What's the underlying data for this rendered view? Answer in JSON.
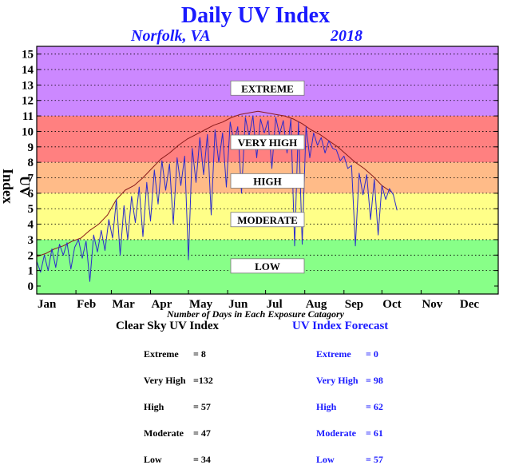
{
  "title": "Daily UV Index",
  "location": "Norfolk, VA",
  "year": "2018",
  "ylabel": "UV Index",
  "subtitle": "Number of Days in Each Exposure Catagory",
  "clear_sky": {
    "heading": "Clear Sky UV Index",
    "rows": [
      {
        "label": "Extreme",
        "value": "= 8"
      },
      {
        "label": "Very High",
        "value": "=132"
      },
      {
        "label": "High",
        "value": "= 57"
      },
      {
        "label": "Moderate",
        "value": "= 47"
      },
      {
        "label": "Low",
        "value": "= 34"
      }
    ]
  },
  "forecast": {
    "heading": "UV Index Forecast",
    "rows": [
      {
        "label": "Extreme",
        "value": "= 0"
      },
      {
        "label": "Very High",
        "value": "= 98"
      },
      {
        "label": "High",
        "value": "= 62"
      },
      {
        "label": "Moderate",
        "value": "= 61"
      },
      {
        "label": "Low",
        "value": "= 57"
      }
    ]
  },
  "chart_data": {
    "type": "line",
    "ylim": [
      0,
      15
    ],
    "yticks": [
      0,
      1,
      2,
      3,
      4,
      5,
      6,
      7,
      8,
      9,
      10,
      11,
      12,
      13,
      14,
      15
    ],
    "xlim": [
      1,
      366
    ],
    "months": [
      {
        "label": "Jan",
        "day": 1
      },
      {
        "label": "Feb",
        "day": 32
      },
      {
        "label": "Mar",
        "day": 60
      },
      {
        "label": "Apr",
        "day": 91
      },
      {
        "label": "May",
        "day": 121
      },
      {
        "label": "Jun",
        "day": 152
      },
      {
        "label": "Jul",
        "day": 182
      },
      {
        "label": "Aug",
        "day": 213
      },
      {
        "label": "Sep",
        "day": 244
      },
      {
        "label": "Oct",
        "day": 274
      },
      {
        "label": "Nov",
        "day": 305
      },
      {
        "label": "Dec",
        "day": 335
      }
    ],
    "grid": true,
    "bands": [
      {
        "label": "LOW",
        "from": 0,
        "to": 3,
        "color": "#88ff88",
        "label_y": 1.3
      },
      {
        "label": "MODERATE",
        "from": 3,
        "to": 6,
        "color": "#ffff88",
        "label_y": 4.3
      },
      {
        "label": "HIGH",
        "from": 6,
        "to": 8,
        "color": "#ffbb88",
        "label_y": 6.8
      },
      {
        "label": "VERY HIGH",
        "from": 8,
        "to": 11,
        "color": "#ff8080",
        "label_y": 9.3
      },
      {
        "label": "EXTREME",
        "from": 11,
        "to": 15.5,
        "color": "#cc88ff",
        "label_y": 12.8
      }
    ],
    "series": [
      {
        "color": "#8b1a1a",
        "points": [
          [
            1,
            1.9
          ],
          [
            8,
            2.1
          ],
          [
            15,
            2.4
          ],
          [
            22,
            2.6
          ],
          [
            29,
            2.9
          ],
          [
            36,
            3.1
          ],
          [
            43,
            3.6
          ],
          [
            50,
            4.0
          ],
          [
            57,
            4.6
          ],
          [
            64,
            5.6
          ],
          [
            71,
            6.2
          ],
          [
            78,
            6.5
          ],
          [
            85,
            7.0
          ],
          [
            92,
            7.6
          ],
          [
            99,
            8.2
          ],
          [
            106,
            8.6
          ],
          [
            113,
            9.1
          ],
          [
            120,
            9.5
          ],
          [
            127,
            9.8
          ],
          [
            134,
            10.1
          ],
          [
            141,
            10.4
          ],
          [
            148,
            10.6
          ],
          [
            155,
            10.9
          ],
          [
            162,
            11.1
          ],
          [
            169,
            11.2
          ],
          [
            176,
            11.3
          ],
          [
            183,
            11.2
          ],
          [
            190,
            11.1
          ],
          [
            197,
            11.0
          ],
          [
            204,
            10.8
          ],
          [
            211,
            10.5
          ],
          [
            218,
            10.1
          ],
          [
            225,
            9.8
          ],
          [
            232,
            9.4
          ],
          [
            239,
            9.0
          ],
          [
            246,
            8.5
          ],
          [
            253,
            8.0
          ],
          [
            260,
            7.6
          ],
          [
            267,
            7.1
          ],
          [
            274,
            6.5
          ],
          [
            281,
            6.1
          ]
        ]
      },
      {
        "color": "#2b2bcc",
        "points": [
          [
            1,
            1.6
          ],
          [
            4,
            0.9
          ],
          [
            7,
            2.0
          ],
          [
            10,
            1.0
          ],
          [
            13,
            2.4
          ],
          [
            16,
            1.2
          ],
          [
            19,
            2.7
          ],
          [
            22,
            2.0
          ],
          [
            25,
            2.8
          ],
          [
            28,
            1.1
          ],
          [
            31,
            2.5
          ],
          [
            34,
            3.0
          ],
          [
            37,
            1.8
          ],
          [
            40,
            2.9
          ],
          [
            43,
            0.3
          ],
          [
            46,
            3.3
          ],
          [
            49,
            2.2
          ],
          [
            52,
            3.6
          ],
          [
            55,
            2.3
          ],
          [
            58,
            4.3
          ],
          [
            61,
            3.1
          ],
          [
            64,
            5.6
          ],
          [
            67,
            2.0
          ],
          [
            70,
            5.2
          ],
          [
            73,
            3.0
          ],
          [
            76,
            5.8
          ],
          [
            79,
            4.1
          ],
          [
            82,
            6.4
          ],
          [
            85,
            3.2
          ],
          [
            88,
            6.7
          ],
          [
            91,
            4.2
          ],
          [
            94,
            7.5
          ],
          [
            97,
            5.3
          ],
          [
            100,
            8.1
          ],
          [
            103,
            6.2
          ],
          [
            106,
            7.9
          ],
          [
            109,
            4.0
          ],
          [
            112,
            8.3
          ],
          [
            115,
            6.5
          ],
          [
            118,
            8.4
          ],
          [
            121,
            1.7
          ],
          [
            124,
            8.9
          ],
          [
            127,
            6.7
          ],
          [
            130,
            9.6
          ],
          [
            133,
            7.2
          ],
          [
            136,
            9.8
          ],
          [
            139,
            4.6
          ],
          [
            142,
            10.1
          ],
          [
            145,
            8.0
          ],
          [
            148,
            9.9
          ],
          [
            151,
            6.4
          ],
          [
            154,
            10.6
          ],
          [
            157,
            9.3
          ],
          [
            160,
            10.3
          ],
          [
            163,
            6.0
          ],
          [
            166,
            10.9
          ],
          [
            169,
            9.7
          ],
          [
            172,
            11.0
          ],
          [
            175,
            8.3
          ],
          [
            178,
            10.8
          ],
          [
            181,
            9.9
          ],
          [
            184,
            10.7
          ],
          [
            187,
            7.6
          ],
          [
            190,
            10.9
          ],
          [
            193,
            9.8
          ],
          [
            196,
            10.7
          ],
          [
            199,
            8.6
          ],
          [
            202,
            10.8
          ],
          [
            205,
            2.6
          ],
          [
            208,
            10.6
          ],
          [
            211,
            2.7
          ],
          [
            214,
            10.3
          ],
          [
            217,
            8.3
          ],
          [
            220,
            9.9
          ],
          [
            223,
            9.1
          ],
          [
            226,
            9.6
          ],
          [
            229,
            8.6
          ],
          [
            232,
            9.4
          ],
          [
            235,
            8.9
          ],
          [
            238,
            8.8
          ],
          [
            241,
            8.1
          ],
          [
            244,
            8.4
          ],
          [
            247,
            7.6
          ],
          [
            250,
            7.8
          ],
          [
            253,
            2.6
          ],
          [
            256,
            7.3
          ],
          [
            259,
            5.9
          ],
          [
            262,
            7.2
          ],
          [
            265,
            4.3
          ],
          [
            268,
            6.9
          ],
          [
            271,
            3.3
          ],
          [
            274,
            6.5
          ],
          [
            277,
            5.6
          ],
          [
            280,
            6.3
          ],
          [
            283,
            5.9
          ],
          [
            286,
            4.9
          ]
        ]
      }
    ]
  }
}
